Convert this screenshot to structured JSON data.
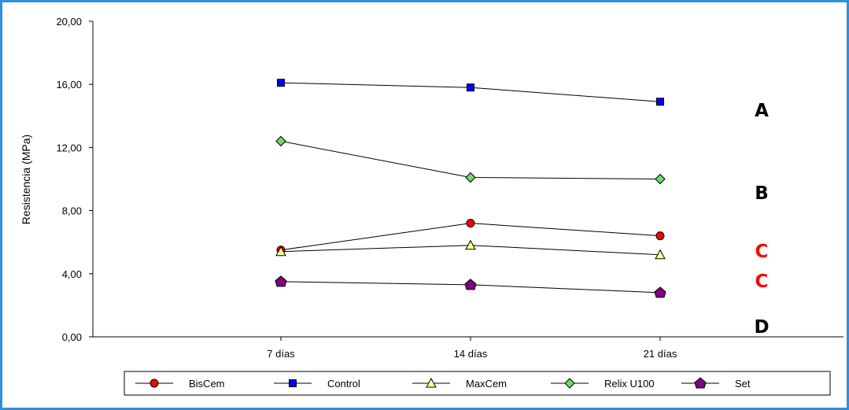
{
  "chart_data": {
    "type": "line",
    "categories": [
      "7 días",
      "14 días",
      "21 días"
    ],
    "ylabel": "Resistencia (MPa)",
    "xlabel": "",
    "ylim": [
      0,
      20
    ],
    "yticks": [
      "0,00",
      "4,00",
      "8,00",
      "12,00",
      "16,00",
      "20,00"
    ],
    "grid": false,
    "legend_position": "bottom",
    "series": [
      {
        "name": "BisCem",
        "values": [
          5.5,
          7.2,
          6.4
        ],
        "color": "#ff0000",
        "marker": "circle"
      },
      {
        "name": "Control",
        "values": [
          16.1,
          15.8,
          14.9
        ],
        "color": "#0000ff",
        "marker": "square"
      },
      {
        "name": "MaxCem",
        "values": [
          5.4,
          5.8,
          5.2
        ],
        "color": "#ffff99",
        "marker": "triangle"
      },
      {
        "name": "Relix U100",
        "values": [
          12.4,
          10.1,
          10.0
        ],
        "color": "#66dd66",
        "marker": "diamond"
      },
      {
        "name": "Set",
        "values": [
          3.5,
          3.3,
          2.8
        ],
        "color": "#800080",
        "marker": "pentagon"
      }
    ],
    "annotations": [
      {
        "text": "A",
        "color": "#000000"
      },
      {
        "text": "B",
        "color": "#000000"
      },
      {
        "text": "C",
        "color": "#ff0000"
      },
      {
        "text": "C",
        "color": "#ff0000"
      },
      {
        "text": "D",
        "color": "#000000"
      }
    ]
  }
}
